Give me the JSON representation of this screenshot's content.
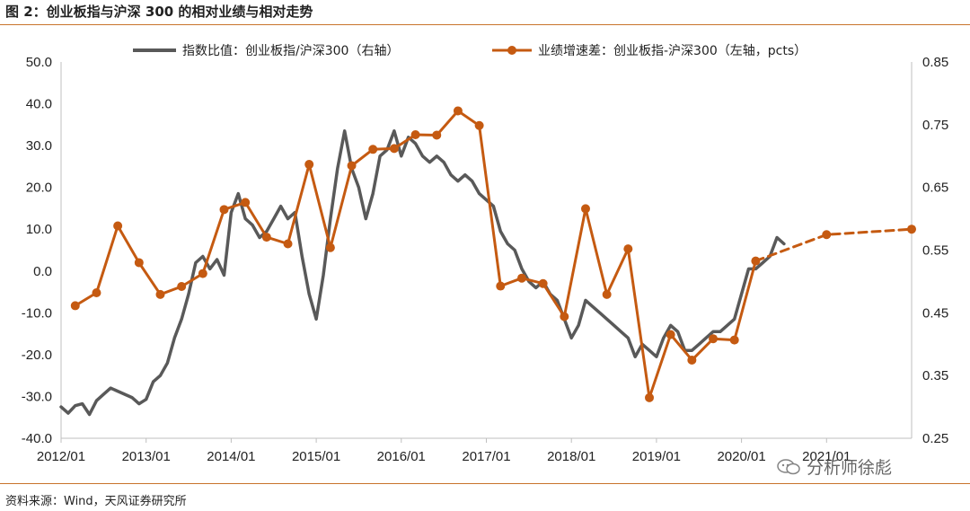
{
  "header": {
    "title": "图 2：创业板指与沪深 300 的相对业绩与相对走势"
  },
  "footer": {
    "source": "资料来源：Wind，天风证券研究所"
  },
  "watermark": {
    "text": "分析师徐彪"
  },
  "colors": {
    "accent": "#c8742c",
    "index_ratio": "#595959",
    "growth_diff": "#c55a11"
  },
  "chart_data": {
    "type": "line",
    "title": "",
    "xlabel": "",
    "x_ticks": [
      "2012/01",
      "2013/01",
      "2014/01",
      "2015/01",
      "2016/01",
      "2017/01",
      "2018/01",
      "2019/01",
      "2020/01",
      "2021/01"
    ],
    "xlim": [
      "2012/01",
      "2022/01"
    ],
    "y_left": {
      "lim": [
        -40,
        50
      ],
      "ticks": [
        "-40.0",
        "-30.0",
        "-20.0",
        "-10.0",
        "0.0",
        "10.0",
        "20.0",
        "30.0",
        "40.0",
        "50.0"
      ]
    },
    "y_right": {
      "lim": [
        0.25,
        0.85
      ],
      "ticks": [
        "0.25",
        "0.35",
        "0.45",
        "0.55",
        "0.65",
        "0.75",
        "0.85"
      ]
    },
    "legend_position": "top",
    "series": [
      {
        "name": "指数比值：创业板指/沪深300（右轴）",
        "axis": "right",
        "style": "solid",
        "points": [
          [
            "2012/01",
            0.3
          ],
          [
            "2012/02",
            0.29
          ],
          [
            "2012/03",
            0.302
          ],
          [
            "2012/04",
            0.305
          ],
          [
            "2012/05",
            0.288
          ],
          [
            "2012/06",
            0.31
          ],
          [
            "2012/07",
            0.32
          ],
          [
            "2012/08",
            0.33
          ],
          [
            "2012/09",
            0.325
          ],
          [
            "2012/10",
            0.32
          ],
          [
            "2012/11",
            0.315
          ],
          [
            "2012/12",
            0.305
          ],
          [
            "2013/01",
            0.312
          ],
          [
            "2013/02",
            0.34
          ],
          [
            "2013/03",
            0.35
          ],
          [
            "2013/04",
            0.37
          ],
          [
            "2013/05",
            0.41
          ],
          [
            "2013/06",
            0.44
          ],
          [
            "2013/07",
            0.48
          ],
          [
            "2013/08",
            0.53
          ],
          [
            "2013/09",
            0.54
          ],
          [
            "2013/10",
            0.52
          ],
          [
            "2013/11",
            0.535
          ],
          [
            "2013/12",
            0.51
          ],
          [
            "2014/01",
            0.61
          ],
          [
            "2014/02",
            0.64
          ],
          [
            "2014/03",
            0.6
          ],
          [
            "2014/04",
            0.59
          ],
          [
            "2014/05",
            0.57
          ],
          [
            "2014/06",
            0.58
          ],
          [
            "2014/07",
            0.6
          ],
          [
            "2014/08",
            0.62
          ],
          [
            "2014/09",
            0.6
          ],
          [
            "2014/10",
            0.61
          ],
          [
            "2014/11",
            0.54
          ],
          [
            "2014/12",
            0.48
          ],
          [
            "2015/01",
            0.44
          ],
          [
            "2015/02",
            0.51
          ],
          [
            "2015/03",
            0.6
          ],
          [
            "2015/04",
            0.68
          ],
          [
            "2015/05",
            0.74
          ],
          [
            "2015/06",
            0.68
          ],
          [
            "2015/07",
            0.65
          ],
          [
            "2015/08",
            0.6
          ],
          [
            "2015/09",
            0.64
          ],
          [
            "2015/10",
            0.7
          ],
          [
            "2015/11",
            0.71
          ],
          [
            "2015/12",
            0.74
          ],
          [
            "2016/01",
            0.7
          ],
          [
            "2016/02",
            0.73
          ],
          [
            "2016/03",
            0.72
          ],
          [
            "2016/04",
            0.7
          ],
          [
            "2016/05",
            0.69
          ],
          [
            "2016/06",
            0.7
          ],
          [
            "2016/07",
            0.69
          ],
          [
            "2016/08",
            0.67
          ],
          [
            "2016/09",
            0.66
          ],
          [
            "2016/10",
            0.67
          ],
          [
            "2016/11",
            0.66
          ],
          [
            "2016/12",
            0.64
          ],
          [
            "2017/01",
            0.63
          ],
          [
            "2017/02",
            0.62
          ],
          [
            "2017/03",
            0.58
          ],
          [
            "2017/04",
            0.56
          ],
          [
            "2017/05",
            0.55
          ],
          [
            "2017/06",
            0.52
          ],
          [
            "2017/07",
            0.5
          ],
          [
            "2017/08",
            0.49
          ],
          [
            "2017/09",
            0.5
          ],
          [
            "2017/10",
            0.48
          ],
          [
            "2017/11",
            0.47
          ],
          [
            "2017/12",
            0.44
          ],
          [
            "2018/01",
            0.41
          ],
          [
            "2018/02",
            0.43
          ],
          [
            "2018/03",
            0.47
          ],
          [
            "2018/04",
            0.46
          ],
          [
            "2018/05",
            0.45
          ],
          [
            "2018/06",
            0.44
          ],
          [
            "2018/07",
            0.43
          ],
          [
            "2018/08",
            0.42
          ],
          [
            "2018/09",
            0.41
          ],
          [
            "2018/10",
            0.38
          ],
          [
            "2018/11",
            0.4
          ],
          [
            "2018/12",
            0.39
          ],
          [
            "2019/01",
            0.38
          ],
          [
            "2019/02",
            0.41
          ],
          [
            "2019/03",
            0.43
          ],
          [
            "2019/04",
            0.42
          ],
          [
            "2019/05",
            0.39
          ],
          [
            "2019/06",
            0.39
          ],
          [
            "2019/07",
            0.4
          ],
          [
            "2019/08",
            0.41
          ],
          [
            "2019/09",
            0.42
          ],
          [
            "2019/10",
            0.42
          ],
          [
            "2019/11",
            0.43
          ],
          [
            "2019/12",
            0.44
          ],
          [
            "2020/01",
            0.48
          ],
          [
            "2020/02",
            0.52
          ],
          [
            "2020/03",
            0.52
          ],
          [
            "2020/04",
            0.53
          ],
          [
            "2020/05",
            0.54
          ],
          [
            "2020/06",
            0.57
          ],
          [
            "2020/07",
            0.56
          ]
        ]
      },
      {
        "name": "业绩增速差：创业板指-沪深300（左轴，pcts）",
        "axis": "left",
        "style": "solid",
        "marker": "circle",
        "points": [
          [
            "2012/03",
            -8.3
          ],
          [
            "2012/06",
            -5.2
          ],
          [
            "2012/09",
            10.8
          ],
          [
            "2012/12",
            2.0
          ],
          [
            "2013/03",
            -5.6
          ],
          [
            "2013/06",
            -3.7
          ],
          [
            "2013/09",
            -0.6
          ],
          [
            "2013/12",
            14.7
          ],
          [
            "2014/03",
            16.4
          ],
          [
            "2014/06",
            8.1
          ],
          [
            "2014/09",
            6.5
          ],
          [
            "2014/12",
            25.5
          ],
          [
            "2015/03",
            5.6
          ],
          [
            "2015/06",
            25.2
          ],
          [
            "2015/09",
            29.1
          ],
          [
            "2015/12",
            29.3
          ],
          [
            "2016/03",
            32.6
          ],
          [
            "2016/06",
            32.5
          ],
          [
            "2016/09",
            38.3
          ],
          [
            "2016/12",
            34.8
          ],
          [
            "2017/03",
            -3.6
          ],
          [
            "2017/06",
            -1.7
          ],
          [
            "2017/09",
            -3.0
          ],
          [
            "2017/12",
            -10.9
          ],
          [
            "2018/03",
            14.9
          ],
          [
            "2018/06",
            -5.6
          ],
          [
            "2018/09",
            5.3
          ],
          [
            "2018/12",
            -30.3
          ],
          [
            "2019/03",
            -15.2
          ],
          [
            "2019/06",
            -21.3
          ],
          [
            "2019/09",
            -16.2
          ],
          [
            "2019/12",
            -16.5
          ],
          [
            "2020/03",
            2.4
          ]
        ]
      },
      {
        "name": "",
        "axis": "left",
        "style": "dashed",
        "marker": "circle",
        "points": [
          [
            "2020/03",
            2.4
          ],
          [
            "2021/01",
            8.7
          ],
          [
            "2022/01",
            10.0
          ]
        ]
      }
    ]
  }
}
